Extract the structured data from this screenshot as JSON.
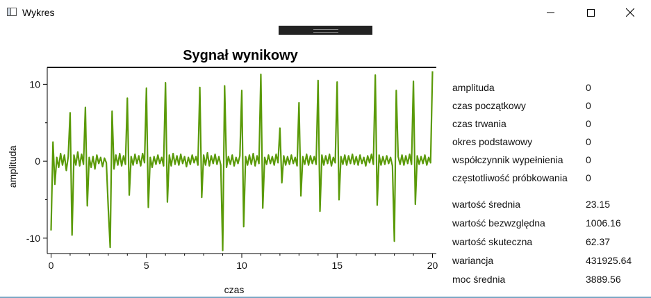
{
  "window": {
    "title": "Wykres",
    "icon": "window-app-icon",
    "controls": [
      "minimize-icon",
      "maximize-icon",
      "close-icon"
    ]
  },
  "chart_data": {
    "type": "line",
    "title": "Sygnał wynikowy",
    "xlabel": "czas",
    "ylabel": "amplituda",
    "xlim": [
      -0.2,
      20.2
    ],
    "ylim": [
      -12,
      12.2
    ],
    "xticks": [
      0,
      5,
      10,
      15,
      20
    ],
    "yticks": [
      -10,
      0,
      10
    ],
    "grid": false,
    "legend": "none",
    "series": [
      {
        "color": "#5a9a08",
        "x": [
          0,
          0.1,
          0.2,
          0.3,
          0.4,
          0.5,
          0.6,
          0.7,
          0.8,
          0.9,
          1,
          1.1,
          1.2,
          1.3,
          1.4,
          1.5,
          1.6,
          1.7,
          1.8,
          1.9,
          2,
          2.1,
          2.2,
          2.3,
          2.4,
          2.5,
          2.6,
          2.7,
          2.8,
          2.9,
          3,
          3.1,
          3.2,
          3.3,
          3.4,
          3.5,
          3.6,
          3.7,
          3.8,
          3.9,
          4,
          4.1,
          4.2,
          4.3,
          4.4,
          4.5,
          4.6,
          4.7,
          4.8,
          4.9,
          5,
          5.1,
          5.2,
          5.3,
          5.4,
          5.5,
          5.6,
          5.7,
          5.8,
          5.9,
          6,
          6.1,
          6.2,
          6.3,
          6.4,
          6.5,
          6.6,
          6.7,
          6.8,
          6.9,
          7,
          7.1,
          7.2,
          7.3,
          7.4,
          7.5,
          7.6,
          7.7,
          7.8,
          7.9,
          8,
          8.1,
          8.2,
          8.3,
          8.4,
          8.5,
          8.6,
          8.7,
          8.8,
          8.9,
          9,
          9.1,
          9.2,
          9.3,
          9.4,
          9.5,
          9.6,
          9.7,
          9.8,
          9.9,
          10,
          10.1,
          10.2,
          10.3,
          10.4,
          10.5,
          10.6,
          10.7,
          10.8,
          10.9,
          11,
          11.1,
          11.2,
          11.3,
          11.4,
          11.5,
          11.6,
          11.7,
          11.8,
          11.9,
          12,
          12.1,
          12.2,
          12.3,
          12.4,
          12.5,
          12.6,
          12.7,
          12.8,
          12.9,
          13,
          13.1,
          13.2,
          13.3,
          13.4,
          13.5,
          13.6,
          13.7,
          13.8,
          13.9,
          14,
          14.1,
          14.2,
          14.3,
          14.4,
          14.5,
          14.6,
          14.7,
          14.8,
          14.9,
          15,
          15.1,
          15.2,
          15.3,
          15.4,
          15.5,
          15.6,
          15.7,
          15.8,
          15.9,
          16,
          16.1,
          16.2,
          16.3,
          16.4,
          16.5,
          16.6,
          16.7,
          16.8,
          16.9,
          17,
          17.1,
          17.2,
          17.3,
          17.4,
          17.5,
          17.6,
          17.7,
          17.8,
          17.9,
          18,
          18.1,
          18.2,
          18.3,
          18.4,
          18.5,
          18.6,
          18.7,
          18.8,
          18.9,
          19,
          19.1,
          19.2,
          19.3,
          19.4,
          19.5,
          19.6,
          19.7,
          19.8,
          19.9,
          20
        ],
        "y": [
          -9,
          2.5,
          -3,
          0.5,
          -0.8,
          1,
          -0.5,
          0.8,
          -1.2,
          0.6,
          6.3,
          -9.6,
          0.8,
          -0.5,
          1.2,
          -0.6,
          0.9,
          -0.4,
          7,
          -5.8,
          0.5,
          -0.8,
          0.6,
          -1,
          0.8,
          -0.3,
          0.5,
          -0.7,
          0.4,
          -0.2,
          -6.1,
          -11.2,
          6.5,
          -1,
          0.8,
          -0.5,
          1,
          -0.6,
          0.7,
          -0.4,
          8.2,
          -4.4,
          0.6,
          -0.5,
          0.9,
          -0.3,
          0.7,
          -0.6,
          1,
          -0.2,
          9.5,
          -6,
          0.5,
          -0.8,
          0.6,
          -0.4,
          0.8,
          -0.3,
          0.5,
          -0.6,
          10.2,
          -5.3,
          0.8,
          -0.6,
          1,
          -0.4,
          0.7,
          -0.5,
          0.9,
          -0.3,
          0.6,
          -0.7,
          0.5,
          -0.4,
          0.8,
          -0.2,
          0.6,
          -0.5,
          9.6,
          -4.7,
          0.8,
          -0.5,
          1.1,
          -0.6,
          0.7,
          -0.3,
          0.9,
          -0.4,
          0.6,
          -0.5,
          -11.6,
          9.8,
          -0.8,
          0.6,
          -0.4,
          0.8,
          -0.6,
          0.5,
          -0.3,
          0.7,
          9.2,
          -8.5,
          0.6,
          -0.5,
          0.8,
          -0.4,
          1,
          -0.6,
          0.7,
          -0.3,
          11.3,
          -6.1,
          0.5,
          -0.4,
          0.8,
          -0.3,
          0.6,
          -0.5,
          0.9,
          -0.2,
          4.3,
          -2.8,
          0.7,
          -0.5,
          0.6,
          -0.4,
          0.8,
          -0.3,
          0.5,
          -0.6,
          7.6,
          -4.5,
          0.6,
          -0.4,
          0.9,
          -0.5,
          0.7,
          -0.3,
          0.6,
          -0.4,
          10.5,
          -6.5,
          0.8,
          -0.5,
          0.7,
          -0.3,
          0.9,
          -0.6,
          0.5,
          -0.2,
          10.3,
          -5,
          0.6,
          -0.4,
          0.8,
          -0.5,
          0.7,
          -0.3,
          0.9,
          -0.4,
          0.6,
          -0.5,
          0.8,
          -0.3,
          0.5,
          -0.6,
          0.7,
          -0.2,
          0.9,
          -0.4,
          11.2,
          -5.7,
          0.8,
          -0.5,
          0.6,
          -0.4,
          0.7,
          -0.3,
          0.5,
          -0.6,
          -10.4,
          9.2,
          0.6,
          -0.4,
          0.8,
          -0.5,
          0.7,
          -0.3,
          0.9,
          -0.4,
          10.4,
          -5.6,
          0.7,
          -0.4,
          0.6,
          -0.3,
          0.8,
          -0.5,
          0.5,
          -0.2,
          11.7
        ]
      }
    ]
  },
  "stats": {
    "group1": [
      {
        "label": "amplituda",
        "value": "0"
      },
      {
        "label": "czas początkowy",
        "value": "0"
      },
      {
        "label": "czas trwania",
        "value": "0"
      },
      {
        "label": "okres podstawowy",
        "value": "0"
      },
      {
        "label": "współczynnik wypełnienia",
        "value": "0"
      },
      {
        "label": "częstotliwość próbkowania",
        "value": "0"
      }
    ],
    "group2": [
      {
        "label": "wartość średnia",
        "value": "23.15"
      },
      {
        "label": "wartość bezwzględna",
        "value": "1006.16"
      },
      {
        "label": "wartość skuteczna",
        "value": "62.37"
      },
      {
        "label": "wariancja",
        "value": "431925.64"
      },
      {
        "label": "moc średnia",
        "value": "3889.56"
      }
    ]
  }
}
